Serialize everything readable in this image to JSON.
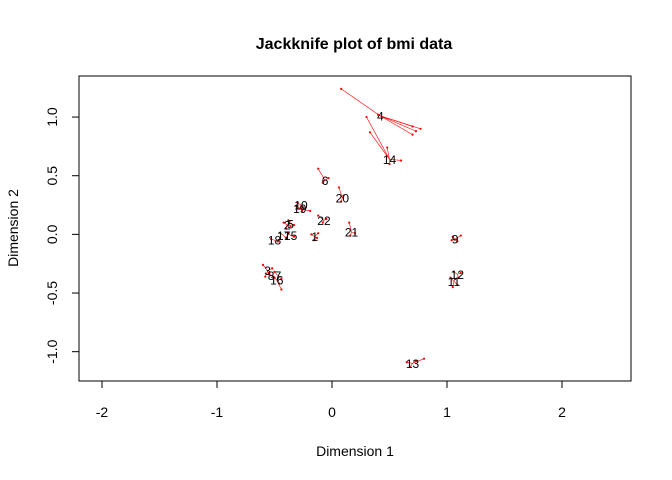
{
  "chart_data": {
    "type": "scatter",
    "title": "Jackknife plot of bmi data",
    "xlabel": "Dimension 1",
    "ylabel": "Dimension 2",
    "xlim": [
      -2.2,
      2.6
    ],
    "ylim": [
      -1.25,
      1.35
    ],
    "xticks": [
      -2,
      -1,
      0,
      1,
      2
    ],
    "xtick_labels": [
      "-2",
      "-1",
      "0",
      "1",
      "2"
    ],
    "yticks": [
      -1.0,
      -0.5,
      0.0,
      0.5,
      1.0
    ],
    "ytick_labels": [
      "-1.0",
      "-0.5",
      "0.0",
      "0.5",
      "1.0"
    ],
    "grid": false,
    "colors": {
      "segment": "#ff0000",
      "label": "#000000",
      "axis": "#000000"
    },
    "points": [
      {
        "label": "1",
        "x": -0.15,
        "y": -0.02,
        "jack": [
          [
            -0.18,
            0.0
          ],
          [
            -0.13,
            -0.03
          ],
          [
            -0.16,
            -0.05
          ],
          [
            -0.12,
            0.01
          ]
        ]
      },
      {
        "label": "2",
        "x": -0.39,
        "y": 0.08,
        "jack": [
          [
            -0.42,
            0.1
          ],
          [
            -0.36,
            0.07
          ],
          [
            -0.4,
            0.05
          ],
          [
            -0.37,
            0.11
          ]
        ]
      },
      {
        "label": "3",
        "x": -0.56,
        "y": -0.31,
        "jack": [
          [
            -0.6,
            -0.26
          ],
          [
            -0.55,
            -0.34
          ],
          [
            -0.52,
            -0.29
          ],
          [
            -0.58,
            -0.36
          ]
        ]
      },
      {
        "label": "4",
        "x": 0.42,
        "y": 1.01,
        "jack": [
          [
            0.08,
            1.24
          ],
          [
            0.7,
            0.85
          ],
          [
            0.73,
            0.88
          ],
          [
            0.77,
            0.9
          ],
          [
            0.7,
            0.92
          ],
          [
            0.4,
            1.02
          ]
        ]
      },
      {
        "label": "5",
        "x": -0.36,
        "y": 0.09,
        "jack": [
          [
            -0.38,
            0.12
          ],
          [
            -0.33,
            0.08
          ]
        ]
      },
      {
        "label": "6",
        "x": -0.06,
        "y": 0.46,
        "jack": [
          [
            -0.12,
            0.56
          ],
          [
            -0.08,
            0.44
          ],
          [
            -0.03,
            0.48
          ]
        ]
      },
      {
        "label": "7",
        "x": -0.47,
        "y": -0.35,
        "jack": [
          [
            -0.5,
            -0.32
          ],
          [
            -0.44,
            -0.38
          ]
        ]
      },
      {
        "label": "8",
        "x": -0.53,
        "y": -0.35,
        "jack": [
          [
            -0.55,
            -0.33
          ],
          [
            -0.5,
            -0.37
          ]
        ]
      },
      {
        "label": "9",
        "x": 1.07,
        "y": -0.04,
        "jack": [
          [
            1.05,
            -0.02
          ],
          [
            1.12,
            -0.01
          ],
          [
            1.09,
            -0.06
          ],
          [
            1.04,
            -0.05
          ]
        ]
      },
      {
        "label": "10",
        "x": -0.27,
        "y": 0.25,
        "jack": [
          [
            -0.3,
            0.27
          ],
          [
            -0.25,
            0.23
          ],
          [
            -0.28,
            0.22
          ]
        ]
      },
      {
        "label": "11",
        "x": 1.06,
        "y": -0.4,
        "jack": [
          [
            1.03,
            -0.37
          ],
          [
            1.09,
            -0.43
          ],
          [
            1.05,
            -0.45
          ],
          [
            1.07,
            -0.38
          ]
        ]
      },
      {
        "label": "12",
        "x": 1.09,
        "y": -0.34,
        "jack": [
          [
            1.06,
            -0.32
          ],
          [
            1.12,
            -0.33
          ],
          [
            1.1,
            -0.37
          ]
        ]
      },
      {
        "label": "13",
        "x": 0.7,
        "y": -1.1,
        "jack": [
          [
            0.65,
            -1.09
          ],
          [
            0.68,
            -1.13
          ],
          [
            0.8,
            -1.06
          ],
          [
            0.73,
            -1.08
          ]
        ]
      },
      {
        "label": "14",
        "x": 0.5,
        "y": 0.64,
        "jack": [
          [
            0.3,
            1.0
          ],
          [
            0.33,
            0.87
          ],
          [
            0.48,
            0.74
          ],
          [
            0.6,
            0.63
          ],
          [
            0.5,
            0.6
          ]
        ]
      },
      {
        "label": "15",
        "x": -0.36,
        "y": -0.01,
        "jack": [
          [
            -0.38,
            0.01
          ],
          [
            -0.33,
            -0.02
          ]
        ]
      },
      {
        "label": "16",
        "x": -0.48,
        "y": -0.39,
        "jack": [
          [
            -0.44,
            -0.47
          ],
          [
            -0.51,
            -0.36
          ],
          [
            -0.46,
            -0.42
          ]
        ]
      },
      {
        "label": "17",
        "x": -0.42,
        "y": -0.01,
        "jack": [
          [
            -0.45,
            0.01
          ],
          [
            -0.4,
            -0.03
          ]
        ]
      },
      {
        "label": "18",
        "x": -0.5,
        "y": -0.05,
        "jack": [
          [
            -0.53,
            -0.04
          ],
          [
            -0.47,
            -0.06
          ]
        ]
      },
      {
        "label": "19",
        "x": -0.28,
        "y": 0.22,
        "jack": [
          [
            -0.31,
            0.24
          ],
          [
            -0.26,
            0.2
          ],
          [
            -0.19,
            0.2
          ]
        ]
      },
      {
        "label": "20",
        "x": 0.09,
        "y": 0.31,
        "jack": [
          [
            0.06,
            0.4
          ],
          [
            0.1,
            0.33
          ],
          [
            0.08,
            0.28
          ]
        ]
      },
      {
        "label": "21",
        "x": 0.17,
        "y": 0.02,
        "jack": [
          [
            0.15,
            0.1
          ],
          [
            0.2,
            0.01
          ],
          [
            0.16,
            -0.01
          ]
        ]
      },
      {
        "label": "22",
        "x": -0.07,
        "y": 0.12,
        "jack": [
          [
            -0.12,
            0.16
          ],
          [
            -0.05,
            0.13
          ],
          [
            -0.08,
            0.1
          ]
        ]
      }
    ]
  }
}
